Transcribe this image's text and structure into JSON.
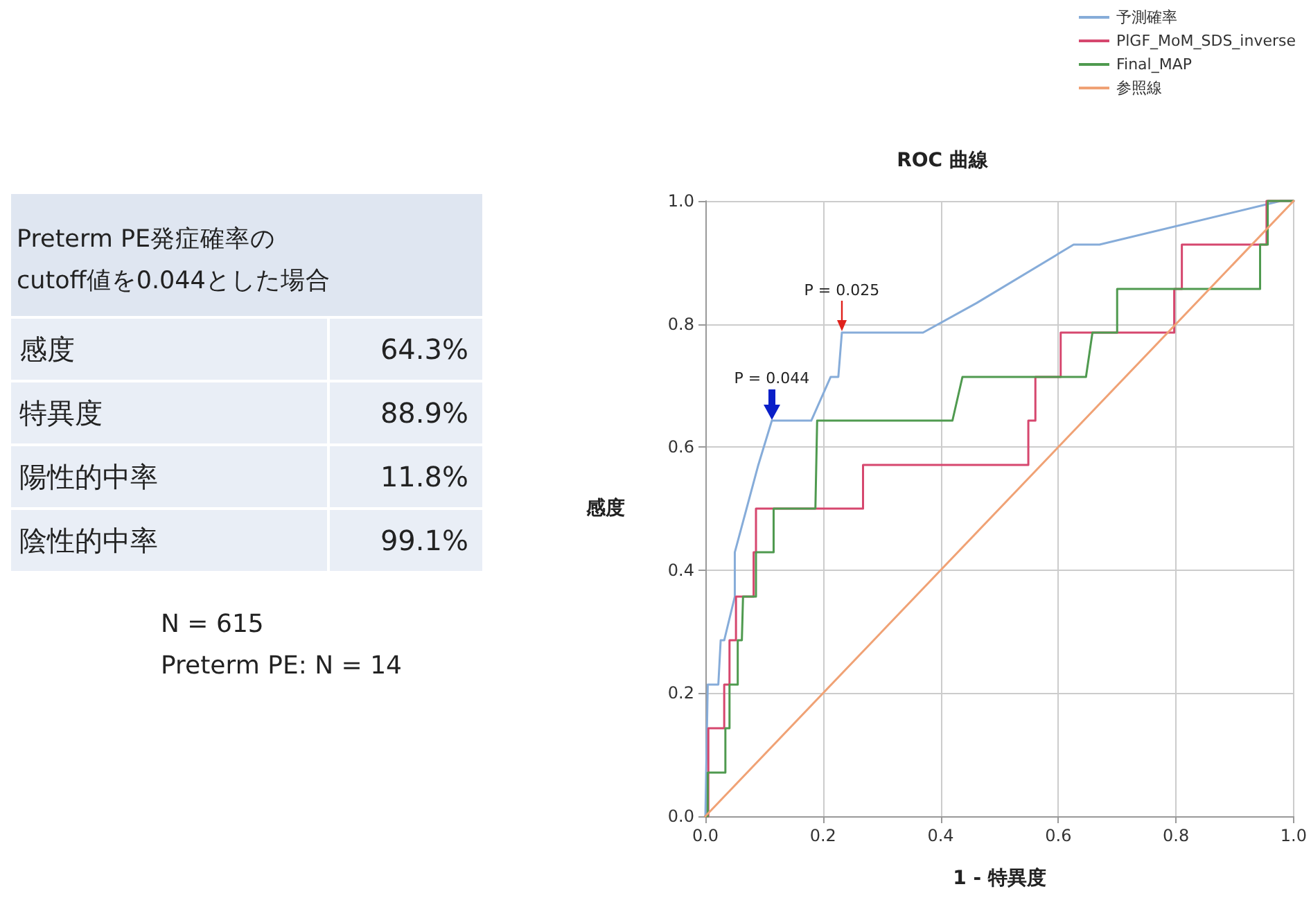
{
  "chart_data": [
    {
      "type": "other",
      "title": "Preterm PE発症確率の\ncutoff値を0.044とした場合",
      "categories": [
        "感度",
        "特異度",
        "陽性的中率",
        "陰性的中率"
      ],
      "value_labels": [
        "64.3%",
        "88.9%",
        "11.8%",
        "99.1%"
      ],
      "annotations": [
        "N = 615",
        "Preterm PE: N = 14"
      ]
    },
    {
      "type": "line",
      "title": "ROC 曲線",
      "xlabel": "1 - 特異度",
      "ylabel": "感度",
      "xlim": [
        0,
        1
      ],
      "ylim": [
        0,
        1
      ],
      "xticks": [
        {
          "value": 0,
          "label": "0.0"
        },
        {
          "value": 0.2,
          "label": "0.2"
        },
        {
          "value": 0.4,
          "label": "0.4"
        },
        {
          "value": 0.6,
          "label": "0.6"
        },
        {
          "value": 0.8,
          "label": "0.8"
        },
        {
          "value": 1,
          "label": "1.0"
        }
      ],
      "yticks": [
        {
          "value": 0,
          "label": "0.0"
        },
        {
          "value": 0.2,
          "label": "0.2"
        },
        {
          "value": 0.4,
          "label": "0.4"
        },
        {
          "value": 0.6,
          "label": "0.6"
        },
        {
          "value": 0.8,
          "label": "0.8"
        },
        {
          "value": 1,
          "label": "1.0"
        }
      ],
      "grid": true,
      "legend": "top right",
      "marker": "none",
      "line_style": "solid",
      "series": [
        {
          "name": "予測確率",
          "color": "#86acd9",
          "x": [
            0,
            0.004,
            0.022,
            0.026,
            0.032,
            0.05,
            0.05,
            0.07,
            0.09,
            0.113,
            0.18,
            0.213,
            0.226,
            0.232,
            0.37,
            0.461,
            0.626,
            0.67,
            0.978,
            1
          ],
          "values": [
            0,
            0.214,
            0.214,
            0.286,
            0.286,
            0.357,
            0.429,
            0.5,
            0.571,
            0.643,
            0.643,
            0.714,
            0.714,
            0.786,
            0.786,
            0.834,
            0.929,
            0.929,
            1,
            1
          ]
        },
        {
          "name": "PlGF_MoM_SDS_inverse",
          "color": "#d6476e",
          "x": [
            0,
            0.005,
            0.005,
            0.032,
            0.032,
            0.041,
            0.041,
            0.052,
            0.052,
            0.082,
            0.082,
            0.086,
            0.086,
            0.268,
            0.268,
            0.549,
            0.549,
            0.561,
            0.561,
            0.604,
            0.604,
            0.797,
            0.797,
            0.81,
            0.81,
            0.954,
            0.954,
            1
          ],
          "values": [
            0,
            0,
            0.143,
            0.143,
            0.214,
            0.214,
            0.286,
            0.286,
            0.357,
            0.357,
            0.429,
            0.429,
            0.5,
            0.5,
            0.571,
            0.571,
            0.643,
            0.643,
            0.714,
            0.714,
            0.786,
            0.786,
            0.857,
            0.857,
            0.929,
            0.929,
            1,
            1
          ]
        },
        {
          "name": "Final_MAP",
          "color": "#4f9a4f",
          "x": [
            0,
            0.004,
            0.004,
            0.034,
            0.034,
            0.041,
            0.041,
            0.055,
            0.055,
            0.062,
            0.064,
            0.086,
            0.086,
            0.116,
            0.116,
            0.187,
            0.19,
            0.42,
            0.437,
            0.647,
            0.658,
            0.7,
            0.7,
            0.943,
            0.943,
            0.956,
            0.956,
            1
          ],
          "values": [
            0,
            0,
            0.071,
            0.071,
            0.143,
            0.143,
            0.214,
            0.214,
            0.286,
            0.286,
            0.357,
            0.357,
            0.429,
            0.429,
            0.5,
            0.5,
            0.643,
            0.643,
            0.714,
            0.714,
            0.786,
            0.786,
            0.857,
            0.857,
            0.929,
            0.929,
            1,
            1
          ]
        },
        {
          "name": "参照線",
          "color": "#f0a275",
          "x": [
            0,
            1
          ],
          "values": [
            0,
            1
          ]
        }
      ],
      "annotations": [
        {
          "text": "P = 0.044",
          "x": 0.113,
          "y": 0.643
        },
        {
          "text": "P = 0.025",
          "x": 0.232,
          "y": 0.786
        }
      ]
    }
  ]
}
